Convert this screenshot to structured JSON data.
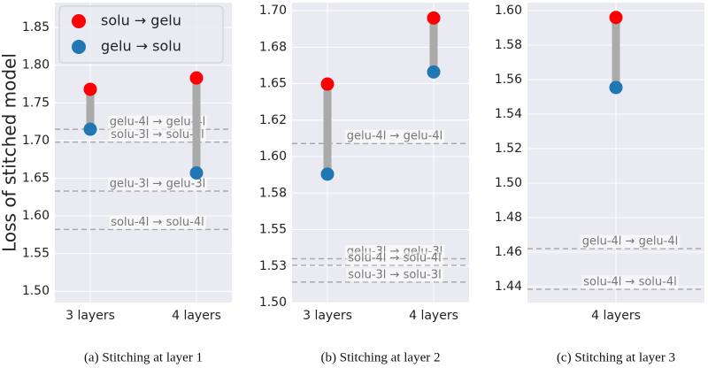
{
  "chart_data": [
    {
      "type": "dumbbell",
      "caption": "(a) Stitching at layer 1",
      "ylabel": "Loss of stitched model",
      "categories": [
        "3 layers",
        "4 layers"
      ],
      "series": [
        {
          "name": "solu → gelu",
          "color": "#ff0000",
          "values": [
            1.768,
            1.783
          ]
        },
        {
          "name": "gelu → solu",
          "color": "#1f77b4",
          "values": [
            1.715,
            1.657
          ]
        }
      ],
      "reference_lines": [
        {
          "label": "gelu-4l → gelu-4l",
          "value": 1.715
        },
        {
          "label": "solu-3l → solu-3l",
          "value": 1.698
        },
        {
          "label": "gelu-3l → gelu-3l",
          "value": 1.633
        },
        {
          "label": "solu-4l → solu-4l",
          "value": 1.582
        }
      ],
      "ylim": [
        1.485,
        1.883
      ],
      "yticks": [
        {
          "value": 1.5,
          "label": "1.50"
        },
        1.55,
        {
          "value": 1.6,
          "label": "1.60"
        },
        1.65,
        {
          "value": 1.7,
          "label": "1.70"
        },
        1.75,
        {
          "value": 1.8,
          "label": "1.80"
        },
        1.85
      ],
      "grid": true
    },
    {
      "type": "dumbbell",
      "caption": "(b) Stitching at layer 2",
      "categories": [
        "3 layers",
        "4 layers"
      ],
      "series": [
        {
          "color": "#ff0000",
          "values": [
            1.6497,
            1.695
          ]
        },
        {
          "color": "#1f77b4",
          "values": [
            1.588,
            1.658
          ]
        }
      ],
      "reference_lines": [
        {
          "label": "gelu-4l → gelu-4l",
          "value": 1.609
        },
        {
          "label": "gelu-3l → gelu-3l",
          "value": 1.53
        },
        {
          "label": "solu-4l → solu-4l",
          "value": 1.5255
        },
        {
          "label": "solu-3l → solu-3l",
          "value": 1.514
        }
      ],
      "ylim": [
        1.5,
        1.7055
      ],
      "yticks": [
        {
          "value": 1.5,
          "label": "1.50"
        },
        {
          "value": 1.525,
          "label": "1.53"
        },
        1.55,
        {
          "value": 1.575,
          "label": "1.58"
        },
        {
          "value": 1.6,
          "label": "1.60"
        },
        {
          "value": 1.625,
          "label": "1.62"
        },
        1.65,
        {
          "value": 1.675,
          "label": "1.68"
        },
        {
          "value": 1.7,
          "label": "1.70"
        }
      ],
      "grid": true
    },
    {
      "type": "dumbbell",
      "caption": "(c) Stitching at layer 3",
      "categories": [
        "4 layers"
      ],
      "series": [
        {
          "color": "#ff0000",
          "values": [
            1.596
          ]
        },
        {
          "color": "#1f77b4",
          "values": [
            1.5554
          ]
        }
      ],
      "reference_lines": [
        {
          "label": "gelu-4l → gelu-4l",
          "value": 1.462
        },
        {
          "label": "solu-4l → solu-4l",
          "value": 1.4385
        }
      ],
      "ylim": [
        1.4308,
        1.6046
      ],
      "yticks": [
        1.44,
        1.46,
        1.48,
        {
          "value": 1.5,
          "label": "1.50"
        },
        1.52,
        1.54,
        1.56,
        1.58,
        {
          "value": 1.6,
          "label": "1.60"
        }
      ],
      "grid": true
    }
  ]
}
